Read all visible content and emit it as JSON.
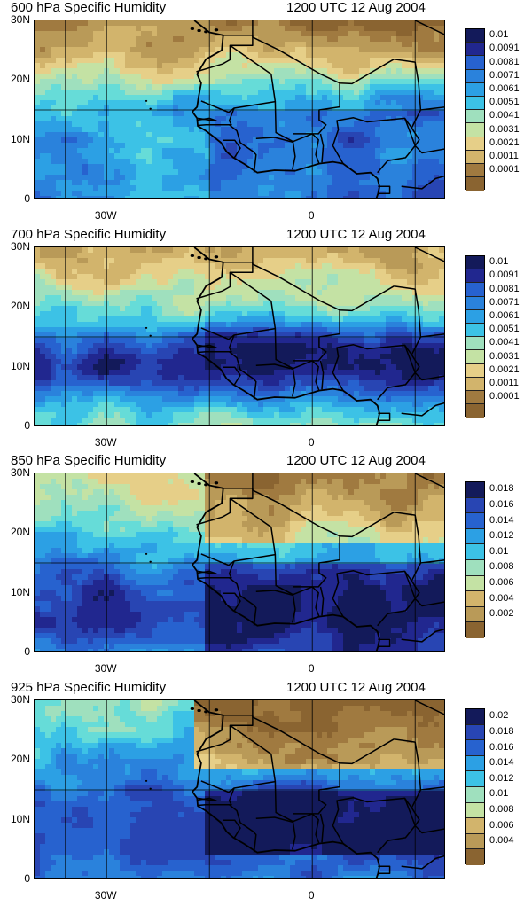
{
  "panels": [
    {
      "title": "600 hPa Specific Humidity",
      "time": "1200 UTC 12 Aug 2004",
      "level": 600,
      "colorbar_labels": [
        "0.01",
        "0.0091",
        "0.0081",
        "0.0071",
        "0.0061",
        "0.0051",
        "0.0041",
        "0.0031",
        "0.0021",
        "0.0011",
        "0.0001"
      ]
    },
    {
      "title": "700 hPa Specific Humidity",
      "time": "1200 UTC 12 Aug 2004",
      "level": 700,
      "colorbar_labels": [
        "0.01",
        "0.0091",
        "0.0081",
        "0.0071",
        "0.0061",
        "0.0051",
        "0.0041",
        "0.0031",
        "0.0021",
        "0.0011",
        "0.0001"
      ]
    },
    {
      "title": "850 hPa Specific Humidity",
      "time": "1200 UTC 12 Aug 2004",
      "level": 850,
      "colorbar_labels": [
        "0.018",
        "0.016",
        "0.014",
        "0.012",
        "0.01",
        "0.008",
        "0.006",
        "0.004",
        "0.002"
      ]
    },
    {
      "title": "925 hPa Specific Humidity",
      "time": "1200 UTC 12 Aug 2004",
      "level": 925,
      "colorbar_labels": [
        "0.02",
        "0.018",
        "0.016",
        "0.014",
        "0.012",
        "0.01",
        "0.008",
        "0.006",
        "0.004"
      ]
    }
  ],
  "axes": {
    "lat_labels": [
      "30N",
      "20N",
      "10N",
      "0"
    ],
    "lon_labels": [
      "30W",
      "0"
    ]
  },
  "palette": [
    "#8a6431",
    "#a07a40",
    "#b99a58",
    "#d2b46c",
    "#e6cf88",
    "#c4e2a4",
    "#9fe0be",
    "#66dcd8",
    "#3cc2e6",
    "#2ca0e4",
    "#2a82dc",
    "#2762cf",
    "#2845b3",
    "#21278f",
    "#131a5a"
  ],
  "coastline_color": "#000000"
}
